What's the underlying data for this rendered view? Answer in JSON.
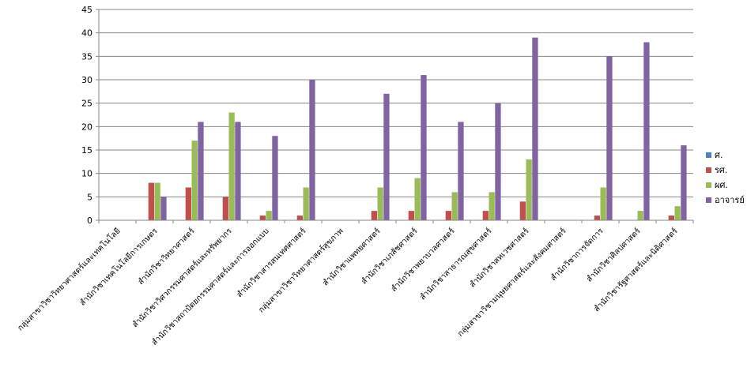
{
  "chart_data": {
    "type": "bar",
    "categories": [
      "กลุ่มสาขาวิชาวิทยาศาสตร์และเทคโนโลยี",
      "สำนักวิชาเทคโนโลยีการเกษตร",
      "สำนักวิชาวิทยาศาสตร์",
      "สำนักวิชาวิศวกรรมศาสตร์และทรัพยากร",
      "สำนักวิชาสถาปัตยกรรมศาสตร์และการออกแบบ",
      "สำนักวิชาสารสนเทศศาสตร์",
      "กลุ่มสาขาวิชาวิทยาศาสตร์สุขภาพ",
      "สำนักวิชาแพทยศาสตร์",
      "สำนักวิชาเภสัชศาสตร์",
      "สำนักวิชาพยาบาลศาสตร์",
      "สำนักวิชาสาธารณสุขศาสตร์",
      "สำนักวิชาสหเวชศาสตร์",
      "กลุ่มสาขาวิชามนุษยศาสตร์และสังคมศาสตร์",
      "สำนักวิชาการจัดการ",
      "สำนักวิชาศิลปศาสตร์",
      "สำนักวิชารัฐศาสตร์และนิติศาสตร์"
    ],
    "series": [
      {
        "name": "ศ.",
        "color": "#4F81BD",
        "values": [
          0,
          0,
          0,
          0,
          0,
          0,
          0,
          0,
          0,
          0,
          0,
          0,
          0,
          0,
          0,
          0
        ]
      },
      {
        "name": "รศ.",
        "color": "#C0504D",
        "values": [
          0,
          8,
          7,
          5,
          1,
          1,
          0,
          2,
          2,
          2,
          2,
          4,
          0,
          1,
          0,
          1
        ]
      },
      {
        "name": "ผศ.",
        "color": "#9BBB59",
        "values": [
          0,
          8,
          17,
          23,
          2,
          7,
          0,
          7,
          9,
          6,
          6,
          13,
          0,
          7,
          2,
          3
        ]
      },
      {
        "name": "อาจารย์",
        "color": "#8064A2",
        "values": [
          0,
          5,
          21,
          21,
          18,
          30,
          0,
          27,
          31,
          21,
          25,
          39,
          0,
          35,
          38,
          16
        ]
      }
    ],
    "ylim": [
      0,
      45
    ],
    "yticks": [
      0,
      5,
      10,
      15,
      20,
      25,
      30,
      35,
      40,
      45
    ],
    "grid": true,
    "legend": "right"
  }
}
